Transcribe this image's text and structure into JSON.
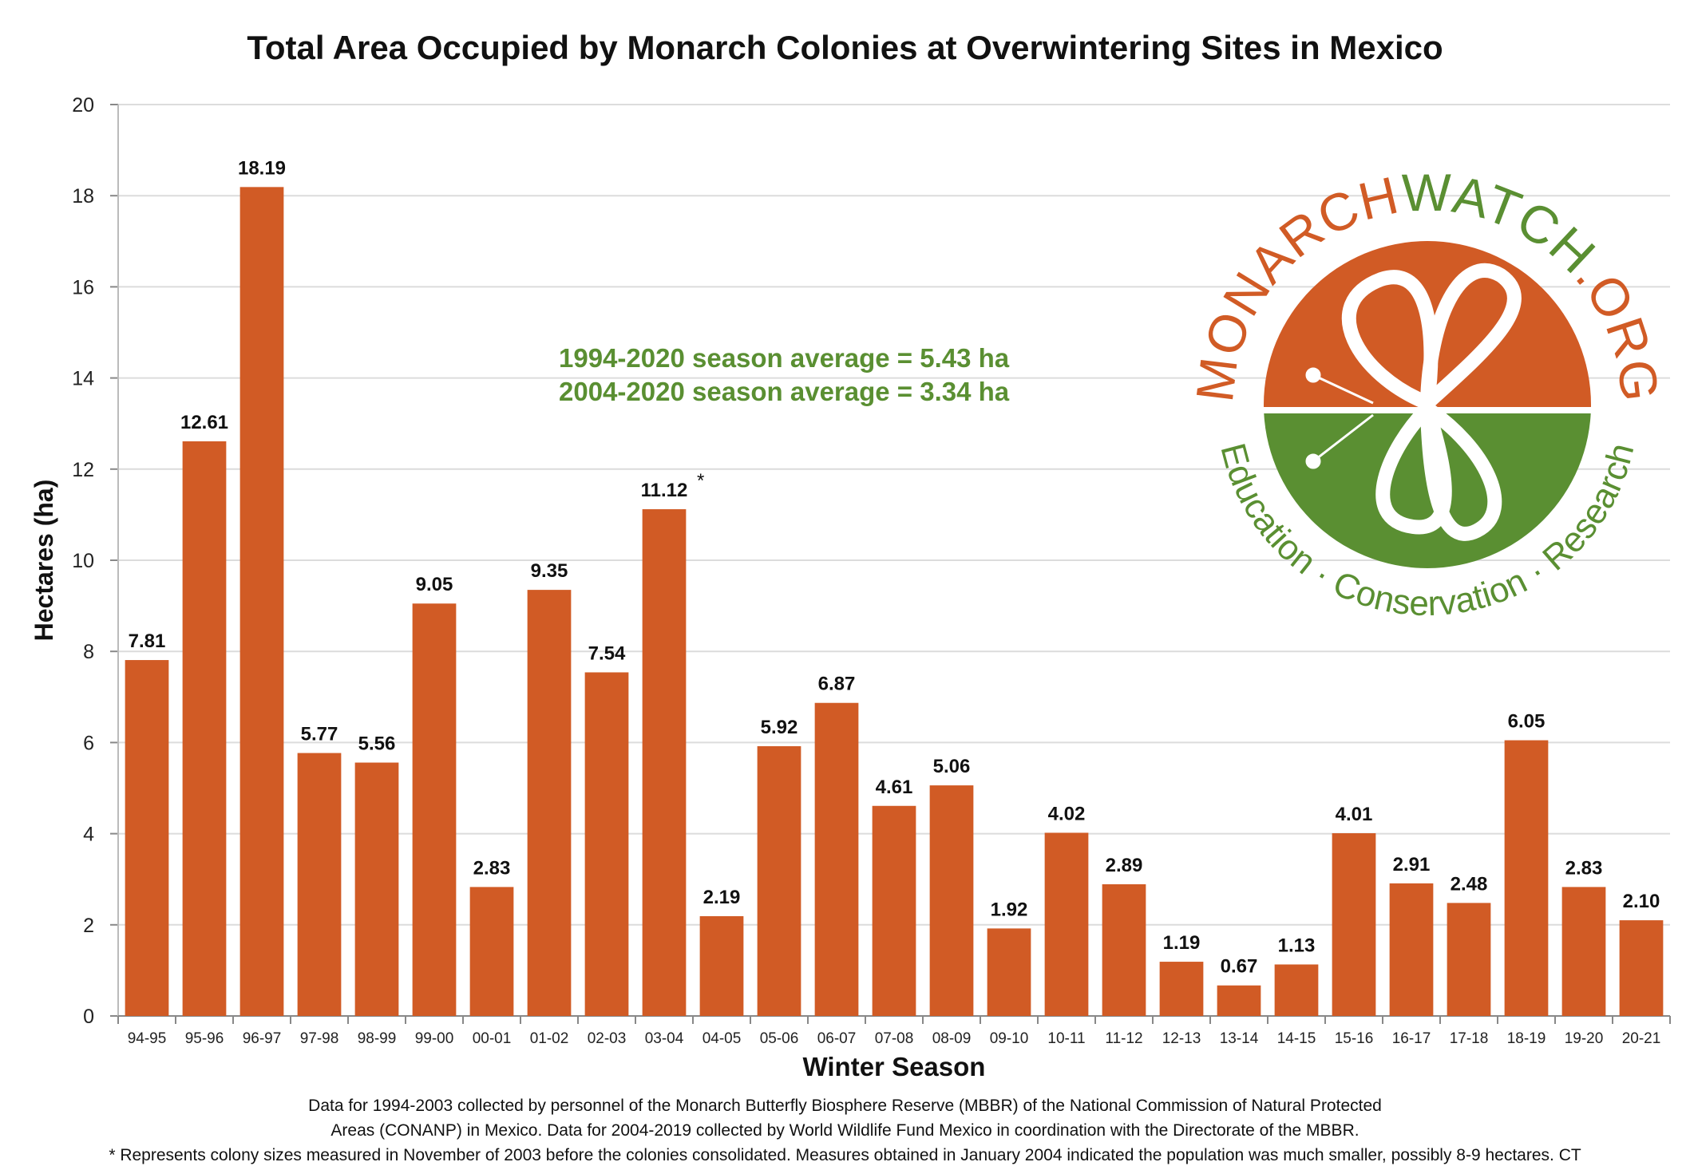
{
  "chart_data": {
    "type": "bar",
    "title": "Total Area Occupied by Monarch Colonies at Overwintering Sites in Mexico",
    "xlabel": "Winter Season",
    "ylabel": "Hectares (ha)",
    "ylim": [
      0,
      20
    ],
    "yticks": [
      "0",
      "2",
      "4",
      "6",
      "8",
      "10",
      "12",
      "14",
      "16",
      "18",
      "20"
    ],
    "grid": true,
    "categories": [
      "94-95",
      "95-96",
      "96-97",
      "97-98",
      "98-99",
      "99-00",
      "00-01",
      "01-02",
      "02-03",
      "03-04",
      "04-05",
      "05-06",
      "06-07",
      "07-08",
      "08-09",
      "09-10",
      "10-11",
      "11-12",
      "12-13",
      "13-14",
      "14-15",
      "15-16",
      "16-17",
      "17-18",
      "18-19",
      "19-20",
      "20-21"
    ],
    "values": [
      7.81,
      12.61,
      18.19,
      5.77,
      5.56,
      9.05,
      2.83,
      9.35,
      7.54,
      11.12,
      2.19,
      5.92,
      6.87,
      4.61,
      5.06,
      1.92,
      4.02,
      2.89,
      1.19,
      0.67,
      1.13,
      4.01,
      2.91,
      2.48,
      6.05,
      2.83,
      2.1
    ],
    "data_labels": [
      "7.81",
      "12.61",
      "18.19",
      "5.77",
      "5.56",
      "9.05",
      "2.83",
      "9.35",
      "7.54",
      "11.12",
      "2.19",
      "5.92",
      "6.87",
      "4.61",
      "5.06",
      "1.92",
      "4.02",
      "2.89",
      "1.19",
      "0.67",
      "1.13",
      "4.01",
      "2.91",
      "2.48",
      "6.05",
      "2.83",
      "2.10"
    ],
    "asterisk_note": "*",
    "bar_color": "#d15b25",
    "annotations": [
      "1994-2020 season average = 5.43 ha",
      "2004-2020 season average = 3.34 ha"
    ]
  },
  "logo": {
    "ring_text_top": "MONARCHWATCH.ORG",
    "ring_text_bottom": [
      "Education",
      "Conservation",
      "Research"
    ],
    "orange": "#d15b25",
    "green": "#5a8f32"
  },
  "footnotes": [
    "Data for 1994-2003 collected by personnel of the Monarch Butterfly Biosphere Reserve (MBBR) of the National Commission of Natural Protected",
    "Areas (CONANP) in Mexico. Data for 2004-2019 collected by World Wildlife Fund Mexico in coordination with the Directorate of the MBBR.",
    "* Represents colony sizes measured in November of 2003 before the colonies consolidated. Measures obtained in January 2004 indicated the population was much smaller, possibly 8-9 hectares. CT"
  ]
}
